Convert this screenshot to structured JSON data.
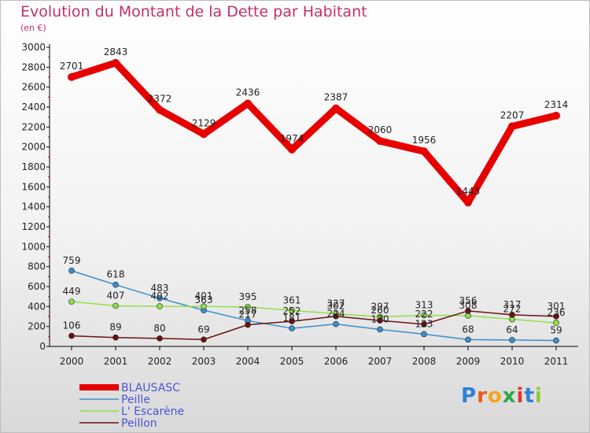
{
  "chart_data": {
    "type": "line",
    "title": "Evolution du Montant de la Dette par Habitant",
    "subtitle": "(en €)",
    "x": [
      "2000",
      "2001",
      "2002",
      "2003",
      "2004",
      "2005",
      "2006",
      "2007",
      "2008",
      "2009",
      "2010",
      "2011"
    ],
    "ylim": [
      0,
      3000
    ],
    "yticks": [
      0,
      200,
      400,
      600,
      800,
      1000,
      1200,
      1400,
      1600,
      1800,
      2000,
      2200,
      2400,
      2600,
      2800,
      3000
    ],
    "grid": false,
    "legend_placement": "bottom-left",
    "series": [
      {
        "name": "BLAUSASC",
        "color": "#e60000",
        "values": [
          2701,
          2843,
          2372,
          2129,
          2436,
          1974,
          2387,
          2060,
          1956,
          1443,
          2207,
          2314
        ]
      },
      {
        "name": "Peille",
        "color": "#3a8fd0",
        "values": [
          759,
          618,
          483,
          363,
          258,
          181,
          224,
          170,
          123,
          68,
          64,
          59
        ]
      },
      {
        "name": "L' Escarène",
        "color": "#8fe04a",
        "values": [
          449,
          407,
          402,
          401,
          395,
          361,
          327,
          297,
          313,
          308,
          272,
          236
        ]
      },
      {
        "name": "Peillon",
        "color": "#6b1212",
        "values": [
          106,
          89,
          80,
          69,
          217,
          252,
          302,
          260,
          222,
          356,
          317,
          301
        ]
      }
    ]
  },
  "logo": {
    "text": "Proxiti"
  }
}
